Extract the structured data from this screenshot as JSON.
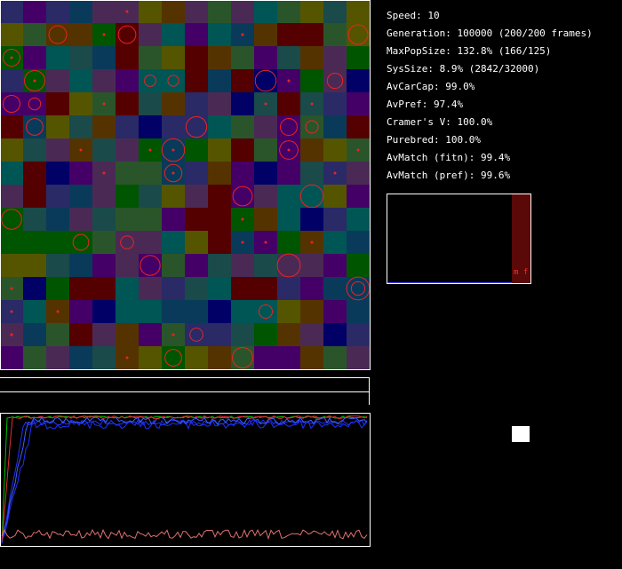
{
  "stats": [
    "Speed: 10",
    "Generation: 100000 (200/200 frames)",
    "MaxPopSize: 132.8% (166/125)",
    "SysSize: 8.9% (2842/32000)",
    "AvCarCap: 99.0%",
    "AvPref: 97.4%",
    "Cramer's V: 100.0%",
    "Purebred: 100.0%",
    "AvMatch (fitn): 99.4%",
    "AvMatch (pref): 99.6%"
  ],
  "panel_label": "m f"
}
